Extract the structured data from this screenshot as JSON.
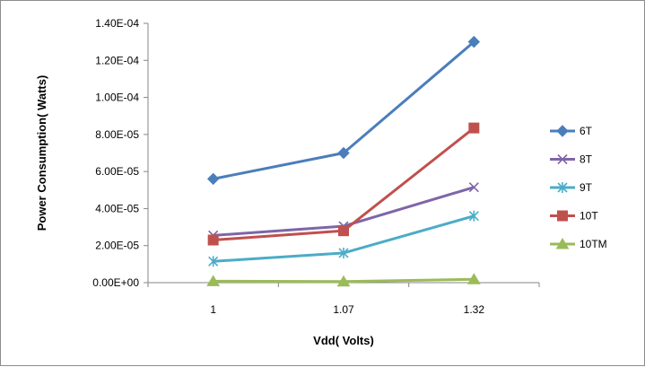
{
  "chart_data": {
    "type": "line",
    "title": "",
    "xlabel": "Vdd( Volts)",
    "ylabel": "Power Consumption( Watts)",
    "categories": [
      "1",
      "1.07",
      "1.32"
    ],
    "ylim": [
      0,
      0.00014
    ],
    "yticks": [
      {
        "value": 0,
        "label": "0.00E+00"
      },
      {
        "value": 2e-05,
        "label": "2.00E-05"
      },
      {
        "value": 4e-05,
        "label": "4.00E-05"
      },
      {
        "value": 6e-05,
        "label": "6.00E-05"
      },
      {
        "value": 8e-05,
        "label": "8.00E-05"
      },
      {
        "value": 0.0001,
        "label": "1.00E-04"
      },
      {
        "value": 0.00012,
        "label": "1.20E-04"
      },
      {
        "value": 0.00014,
        "label": "1.40E-04"
      }
    ],
    "grid": false,
    "legend_position": "right",
    "series": [
      {
        "name": "6T",
        "values": [
          5.6e-05,
          7e-05,
          0.00013
        ],
        "color": "#4a7ebb",
        "marker": "diamond"
      },
      {
        "name": "8T",
        "values": [
          2.55e-05,
          3.05e-05,
          5.15e-05
        ],
        "color": "#7e65a8",
        "marker": "x"
      },
      {
        "name": "9T",
        "values": [
          1.15e-05,
          1.6e-05,
          3.6e-05
        ],
        "color": "#4bacc6",
        "marker": "star"
      },
      {
        "name": "10T",
        "values": [
          2.3e-05,
          2.8e-05,
          8.35e-05
        ],
        "color": "#c0504d",
        "marker": "square"
      },
      {
        "name": "10TM",
        "values": [
          8e-07,
          6e-07,
          1.8e-06
        ],
        "color": "#9bbb59",
        "marker": "triangle"
      }
    ]
  }
}
